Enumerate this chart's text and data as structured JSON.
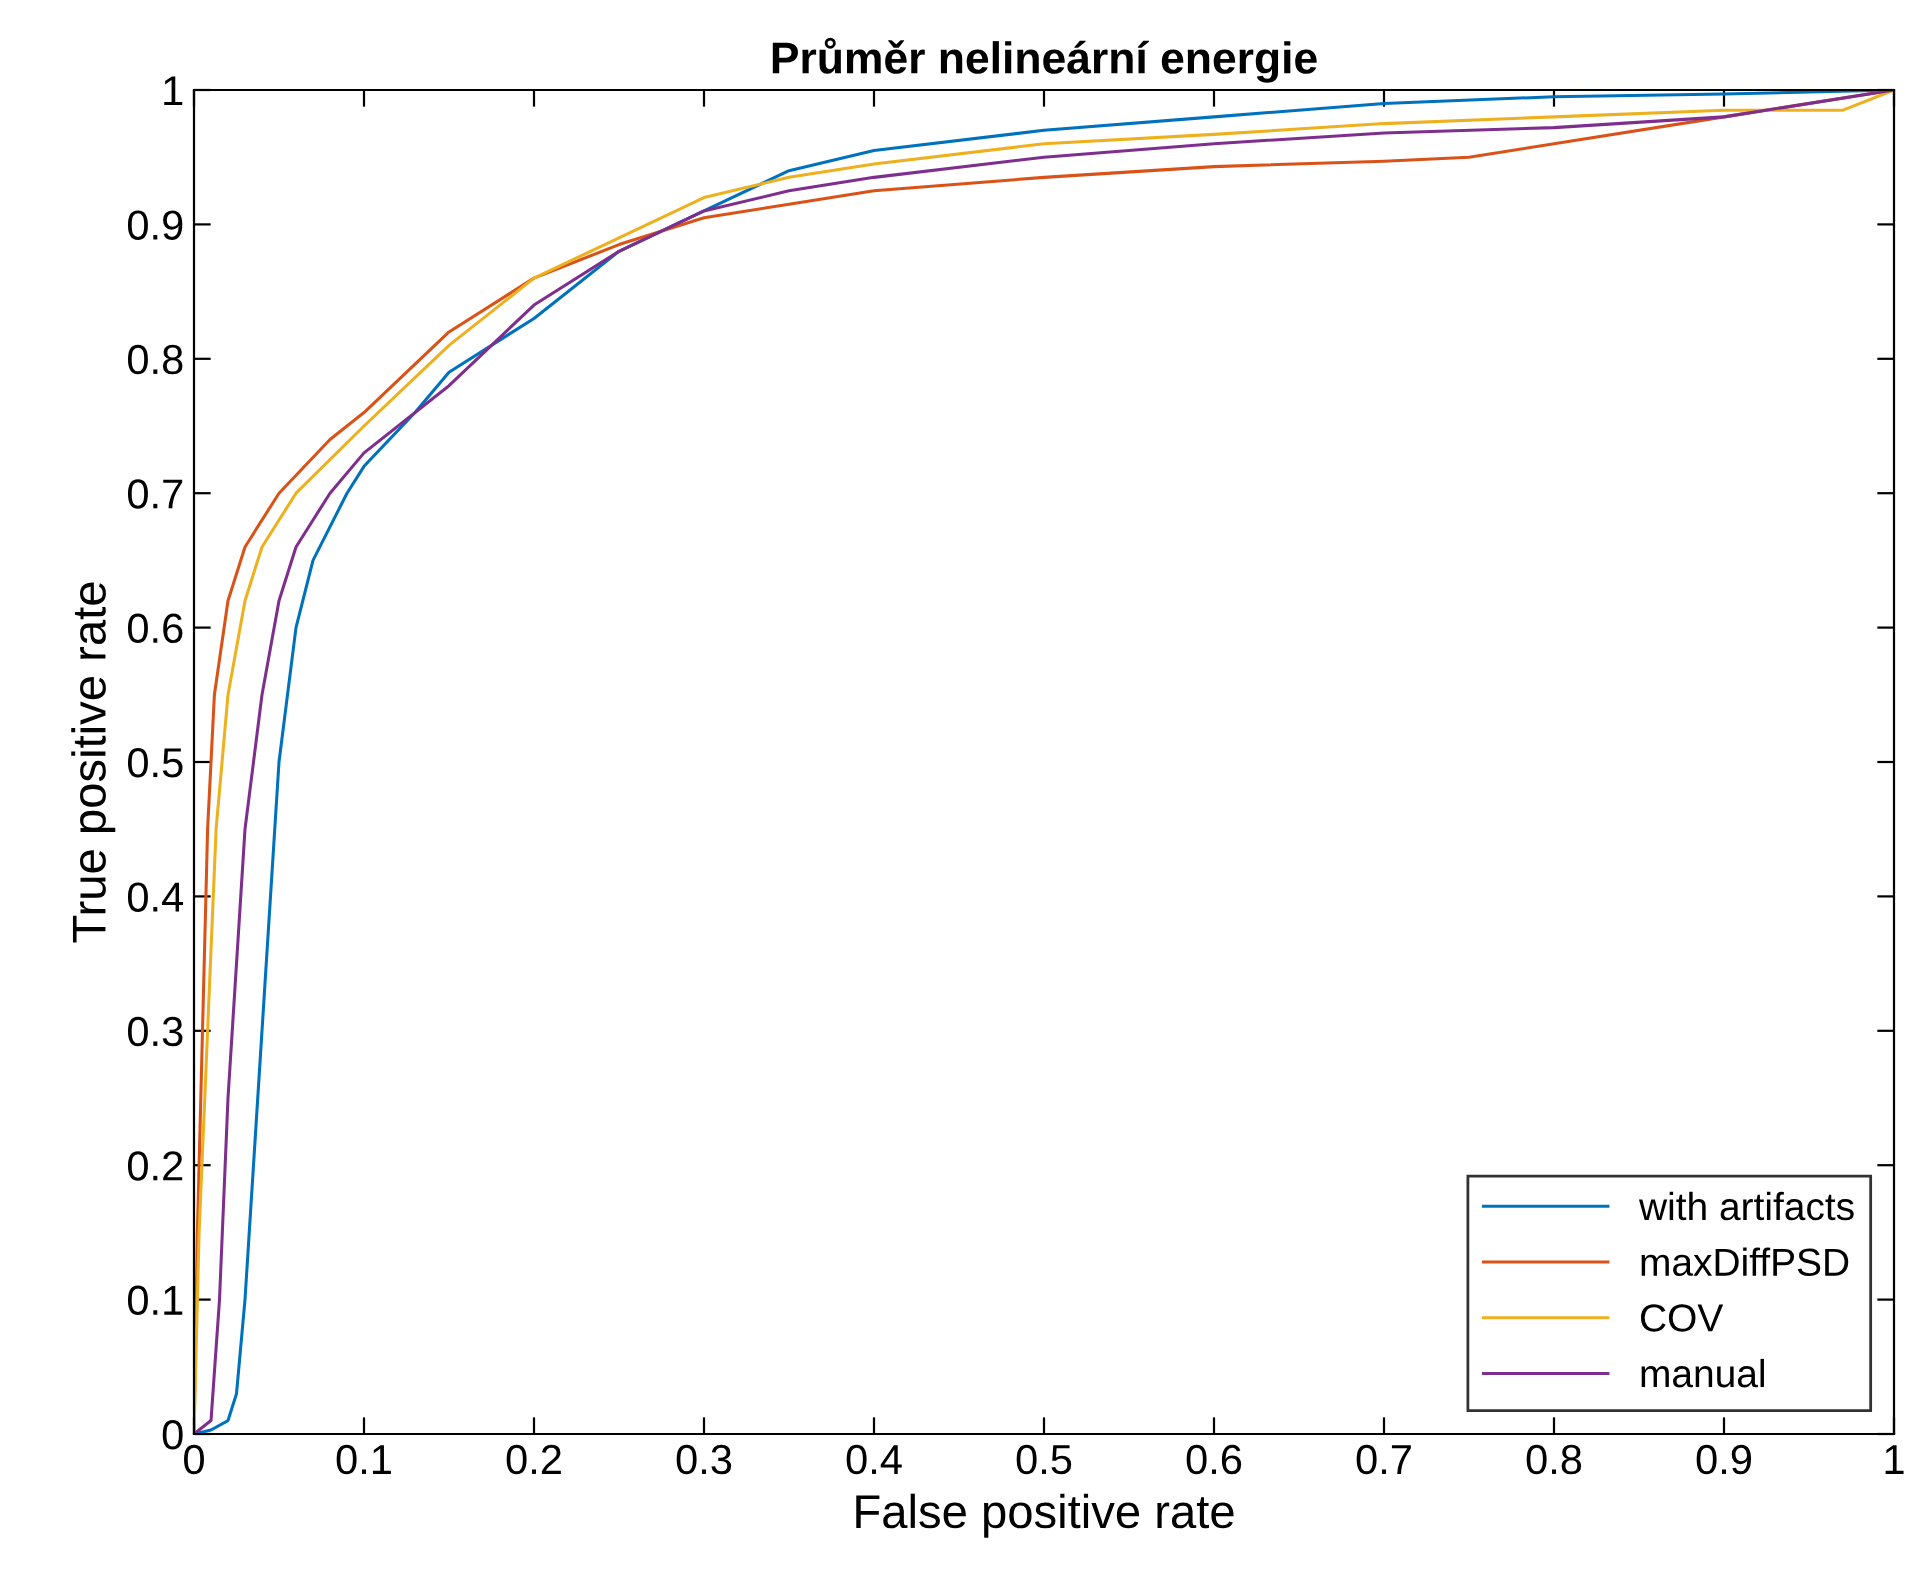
{
  "chart_data": {
    "type": "line",
    "title": "Průměr nelineární energie",
    "xlabel": "False positive rate",
    "ylabel": "True positive rate",
    "xlim": [
      0,
      1
    ],
    "ylim": [
      0,
      1
    ],
    "xticks": [
      0,
      0.1,
      0.2,
      0.3,
      0.4,
      0.5,
      0.6,
      0.7,
      0.8,
      0.9,
      1
    ],
    "yticks": [
      0,
      0.1,
      0.2,
      0.3,
      0.4,
      0.5,
      0.6,
      0.7,
      0.8,
      0.9,
      1
    ],
    "grid": false,
    "legend": "bottom right",
    "series": [
      {
        "name": "with artifacts",
        "color": "#0072bd",
        "x": [
          0,
          0.01,
          0.02,
          0.025,
          0.03,
          0.035,
          0.04,
          0.045,
          0.05,
          0.06,
          0.07,
          0.09,
          0.1,
          0.13,
          0.15,
          0.2,
          0.25,
          0.3,
          0.35,
          0.4,
          0.5,
          0.6,
          0.7,
          0.8,
          0.9,
          1
        ],
        "values": [
          0,
          0.003,
          0.01,
          0.03,
          0.1,
          0.2,
          0.3,
          0.4,
          0.5,
          0.6,
          0.65,
          0.7,
          0.72,
          0.76,
          0.79,
          0.83,
          0.88,
          0.91,
          0.94,
          0.955,
          0.97,
          0.98,
          0.99,
          0.995,
          0.997,
          1
        ]
      },
      {
        "name": "maxDiffPSD",
        "color": "#d95319",
        "x": [
          0,
          0.002,
          0.005,
          0.008,
          0.012,
          0.02,
          0.03,
          0.05,
          0.08,
          0.1,
          0.15,
          0.2,
          0.25,
          0.3,
          0.35,
          0.4,
          0.5,
          0.6,
          0.7,
          0.75,
          0.9,
          1
        ],
        "values": [
          0,
          0.15,
          0.3,
          0.45,
          0.55,
          0.62,
          0.66,
          0.7,
          0.74,
          0.76,
          0.82,
          0.86,
          0.885,
          0.905,
          0.915,
          0.925,
          0.935,
          0.943,
          0.947,
          0.95,
          0.98,
          1
        ]
      },
      {
        "name": "COV",
        "color": "#edb120",
        "x": [
          0,
          0.003,
          0.008,
          0.013,
          0.02,
          0.03,
          0.04,
          0.06,
          0.1,
          0.15,
          0.2,
          0.25,
          0.3,
          0.35,
          0.4,
          0.5,
          0.6,
          0.7,
          0.8,
          0.9,
          0.97,
          1
        ],
        "values": [
          0,
          0.15,
          0.3,
          0.45,
          0.55,
          0.62,
          0.66,
          0.7,
          0.75,
          0.81,
          0.86,
          0.89,
          0.92,
          0.935,
          0.945,
          0.96,
          0.967,
          0.975,
          0.98,
          0.985,
          0.985,
          1
        ]
      },
      {
        "name": "manual",
        "color": "#7e2f8e",
        "x": [
          0,
          0.01,
          0.015,
          0.02,
          0.025,
          0.03,
          0.04,
          0.05,
          0.06,
          0.08,
          0.1,
          0.15,
          0.2,
          0.25,
          0.3,
          0.35,
          0.4,
          0.5,
          0.6,
          0.7,
          0.8,
          0.9,
          1
        ],
        "values": [
          0,
          0.01,
          0.1,
          0.25,
          0.35,
          0.45,
          0.55,
          0.62,
          0.66,
          0.7,
          0.73,
          0.78,
          0.84,
          0.88,
          0.91,
          0.925,
          0.935,
          0.95,
          0.96,
          0.968,
          0.972,
          0.98,
          1
        ]
      }
    ]
  }
}
